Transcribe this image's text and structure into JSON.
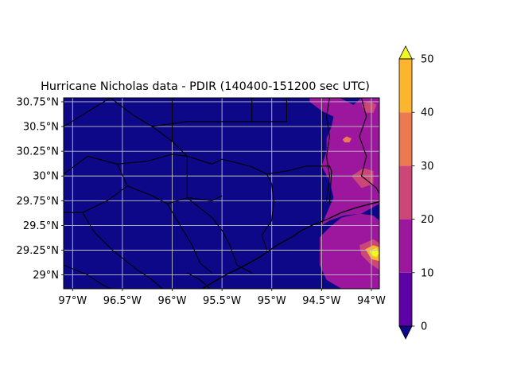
{
  "chart_data": {
    "type": "heatmap",
    "title": "Hurricane Nicholas data - PDIR (140400-151200 sec UTC)",
    "xlabel": "",
    "ylabel": "",
    "xlim": [
      -97.09,
      -93.92
    ],
    "ylim": [
      28.86,
      30.79
    ],
    "x_ticks": [
      {
        "value": -97.0,
        "label": "97°W"
      },
      {
        "value": -96.5,
        "label": "96.5°W"
      },
      {
        "value": -96.0,
        "label": "96°W"
      },
      {
        "value": -95.5,
        "label": "95.5°W"
      },
      {
        "value": -95.0,
        "label": "95°W"
      },
      {
        "value": -94.5,
        "label": "94.5°W"
      },
      {
        "value": -94.0,
        "label": "94°W"
      }
    ],
    "y_ticks": [
      {
        "value": 29.0,
        "label": "29°N"
      },
      {
        "value": 29.25,
        "label": "29.25°N"
      },
      {
        "value": 29.5,
        "label": "29.5°N"
      },
      {
        "value": 29.75,
        "label": "29.75°N"
      },
      {
        "value": 30.0,
        "label": "30°N"
      },
      {
        "value": 30.25,
        "label": "30.25°N"
      },
      {
        "value": 30.5,
        "label": "30.5°N"
      },
      {
        "value": 30.75,
        "label": "30.75°N"
      }
    ],
    "grid": true,
    "colorbar": {
      "levels": [
        0,
        10,
        20,
        30,
        40,
        50
      ],
      "tick_labels": [
        "0",
        "10",
        "20",
        "30",
        "40",
        "50"
      ],
      "colors": [
        "#5c01a6",
        "#9c179e",
        "#cc4778",
        "#ed7953",
        "#fdb42f"
      ],
      "under_color": "#0d0887",
      "over_color": "#f0f921",
      "extend": "both"
    },
    "background_value_range": [
      0,
      10
    ],
    "precip_regions": [
      {
        "name": "band-northeast",
        "bin": "10-20",
        "color": "#9c179e",
        "polygon": [
          [
            -94.62,
            30.79
          ],
          [
            -94.32,
            30.79
          ],
          [
            -94.18,
            30.72
          ],
          [
            -94.1,
            30.79
          ],
          [
            -93.92,
            30.79
          ],
          [
            -93.92,
            29.72
          ],
          [
            -94.1,
            29.62
          ],
          [
            -94.28,
            29.6
          ],
          [
            -94.42,
            29.55
          ],
          [
            -94.5,
            29.5
          ],
          [
            -94.45,
            29.62
          ],
          [
            -94.38,
            29.78
          ],
          [
            -94.42,
            29.95
          ],
          [
            -94.5,
            30.1
          ],
          [
            -94.45,
            30.25
          ],
          [
            -94.45,
            30.38
          ],
          [
            -94.4,
            30.5
          ],
          [
            -94.38,
            30.6
          ],
          [
            -94.5,
            30.66
          ],
          [
            -94.62,
            30.75
          ]
        ]
      },
      {
        "name": "band-southeast",
        "bin": "10-20",
        "color": "#9c179e",
        "polygon": [
          [
            -94.52,
            29.38
          ],
          [
            -94.42,
            29.48
          ],
          [
            -94.3,
            29.58
          ],
          [
            -94.12,
            29.62
          ],
          [
            -93.98,
            29.6
          ],
          [
            -93.92,
            29.55
          ],
          [
            -93.92,
            28.86
          ],
          [
            -94.3,
            28.86
          ],
          [
            -94.45,
            28.95
          ],
          [
            -94.52,
            29.1
          ]
        ]
      },
      {
        "name": "spot-central-east",
        "bin": "20-30",
        "color": "#cc4778",
        "polygon": [
          [
            -94.2,
            30.0
          ],
          [
            -94.08,
            30.08
          ],
          [
            -93.98,
            30.05
          ],
          [
            -93.98,
            29.92
          ],
          [
            -94.1,
            29.88
          ]
        ]
      },
      {
        "name": "spot-northeast",
        "bin": "20-30",
        "color": "#cc4778",
        "polygon": [
          [
            -94.1,
            30.72
          ],
          [
            -94.02,
            30.76
          ],
          [
            -93.95,
            30.72
          ],
          [
            -93.98,
            30.64
          ],
          [
            -94.06,
            30.64
          ]
        ]
      },
      {
        "name": "spot-north-central",
        "bin": "30-40",
        "color": "#ed7953",
        "polygon": [
          [
            -94.29,
            30.37
          ],
          [
            -94.25,
            30.4
          ],
          [
            -94.2,
            30.38
          ],
          [
            -94.22,
            30.34
          ],
          [
            -94.27,
            30.34
          ]
        ]
      },
      {
        "name": "spot-southeast",
        "bin": "20-30",
        "color": "#cc4778",
        "polygon": [
          [
            -94.12,
            29.3
          ],
          [
            -93.98,
            29.36
          ],
          [
            -93.92,
            29.32
          ],
          [
            -93.92,
            29.05
          ],
          [
            -94.02,
            29.12
          ],
          [
            -94.1,
            29.2
          ]
        ]
      },
      {
        "name": "peak-southeast",
        "bin": "40-50",
        "color": "#fdb42f",
        "polygon": [
          [
            -94.06,
            29.26
          ],
          [
            -93.98,
            29.3
          ],
          [
            -93.92,
            29.28
          ],
          [
            -93.92,
            29.14
          ],
          [
            -94.0,
            29.16
          ]
        ]
      },
      {
        "name": "peak-southeast-max",
        "bin": ">50",
        "color": "#f0f921",
        "polygon": [
          [
            -94.02,
            29.24
          ],
          [
            -93.95,
            29.27
          ],
          [
            -93.92,
            29.22
          ],
          [
            -93.95,
            29.18
          ],
          [
            -94.0,
            29.2
          ]
        ]
      }
    ],
    "coastline": [
      [
        -95.7,
        28.86
      ],
      [
        -95.5,
        28.98
      ],
      [
        -95.3,
        29.08
      ],
      [
        -95.12,
        29.18
      ],
      [
        -94.95,
        29.3
      ],
      [
        -94.8,
        29.38
      ],
      [
        -94.7,
        29.45
      ],
      [
        -94.6,
        29.5
      ],
      [
        -94.45,
        29.56
      ],
      [
        -94.3,
        29.63
      ],
      [
        -94.15,
        29.68
      ],
      [
        -94.0,
        29.72
      ],
      [
        -93.92,
        29.74
      ]
    ],
    "boundaries": [
      [
        [
          -97.09,
          30.5
        ],
        [
          -96.8,
          30.68
        ],
        [
          -96.62,
          30.79
        ]
      ],
      [
        [
          -96.62,
          30.79
        ],
        [
          -96.4,
          30.62
        ],
        [
          -96.2,
          30.5
        ],
        [
          -96.0,
          30.35
        ],
        [
          -95.85,
          30.2
        ]
      ],
      [
        [
          -96.0,
          30.79
        ],
        [
          -96.0,
          30.35
        ]
      ],
      [
        [
          -95.2,
          30.79
        ],
        [
          -95.2,
          30.55
        ],
        [
          -94.85,
          30.55
        ],
        [
          -94.85,
          30.79
        ]
      ],
      [
        [
          -96.2,
          30.5
        ],
        [
          -95.85,
          30.55
        ],
        [
          -95.3,
          30.55
        ],
        [
          -95.2,
          30.55
        ]
      ],
      [
        [
          -97.09,
          30.02
        ],
        [
          -96.85,
          30.2
        ],
        [
          -96.55,
          30.12
        ],
        [
          -96.25,
          30.15
        ],
        [
          -96.0,
          30.22
        ],
        [
          -95.85,
          30.2
        ],
        [
          -95.6,
          30.12
        ],
        [
          -95.5,
          30.17
        ]
      ],
      [
        [
          -96.55,
          30.12
        ],
        [
          -96.45,
          29.9
        ],
        [
          -96.2,
          29.8
        ],
        [
          -96.05,
          29.72
        ],
        [
          -95.85,
          29.78
        ],
        [
          -95.6,
          29.75
        ],
        [
          -95.5,
          29.8
        ]
      ],
      [
        [
          -95.85,
          30.2
        ],
        [
          -95.85,
          29.78
        ]
      ],
      [
        [
          -95.5,
          30.17
        ],
        [
          -95.22,
          30.1
        ],
        [
          -95.05,
          30.02
        ],
        [
          -95.0,
          29.92
        ],
        [
          -94.98,
          29.75
        ],
        [
          -95.0,
          29.55
        ],
        [
          -95.1,
          29.4
        ],
        [
          -95.05,
          29.25
        ]
      ],
      [
        [
          -95.05,
          30.02
        ],
        [
          -94.85,
          30.05
        ],
        [
          -94.65,
          30.1
        ],
        [
          -94.42,
          30.1
        ],
        [
          -94.4,
          30.05
        ],
        [
          -94.42,
          29.72
        ]
      ],
      [
        [
          -97.09,
          29.63
        ],
        [
          -96.9,
          29.63
        ],
        [
          -96.78,
          29.43
        ],
        [
          -96.6,
          29.25
        ],
        [
          -96.35,
          29.05
        ],
        [
          -96.2,
          28.95
        ],
        [
          -96.1,
          28.86
        ]
      ],
      [
        [
          -96.9,
          29.63
        ],
        [
          -96.65,
          29.75
        ],
        [
          -96.45,
          29.9
        ]
      ],
      [
        [
          -96.05,
          29.72
        ],
        [
          -95.95,
          29.55
        ],
        [
          -95.8,
          29.3
        ],
        [
          -95.72,
          29.12
        ],
        [
          -95.6,
          29.02
        ]
      ],
      [
        [
          -95.85,
          29.78
        ],
        [
          -95.6,
          29.58
        ],
        [
          -95.5,
          29.45
        ],
        [
          -95.42,
          29.3
        ],
        [
          -95.35,
          29.1
        ],
        [
          -95.2,
          29.02
        ]
      ],
      [
        [
          -97.09,
          29.1
        ],
        [
          -96.85,
          29.0
        ],
        [
          -96.7,
          28.9
        ],
        [
          -96.62,
          28.86
        ]
      ],
      [
        [
          -95.85,
          29.02
        ],
        [
          -95.72,
          28.95
        ],
        [
          -95.62,
          28.86
        ]
      ],
      [
        [
          -94.42,
          30.79
        ],
        [
          -94.45,
          30.6
        ],
        [
          -94.42,
          30.4
        ],
        [
          -94.45,
          30.2
        ],
        [
          -94.42,
          30.0
        ],
        [
          -94.45,
          29.75
        ]
      ],
      [
        [
          -94.1,
          30.79
        ],
        [
          -94.05,
          30.6
        ],
        [
          -94.12,
          30.4
        ],
        [
          -94.05,
          30.2
        ],
        [
          -94.1,
          30.0
        ],
        [
          -93.95,
          29.88
        ],
        [
          -93.92,
          29.82
        ]
      ]
    ]
  }
}
